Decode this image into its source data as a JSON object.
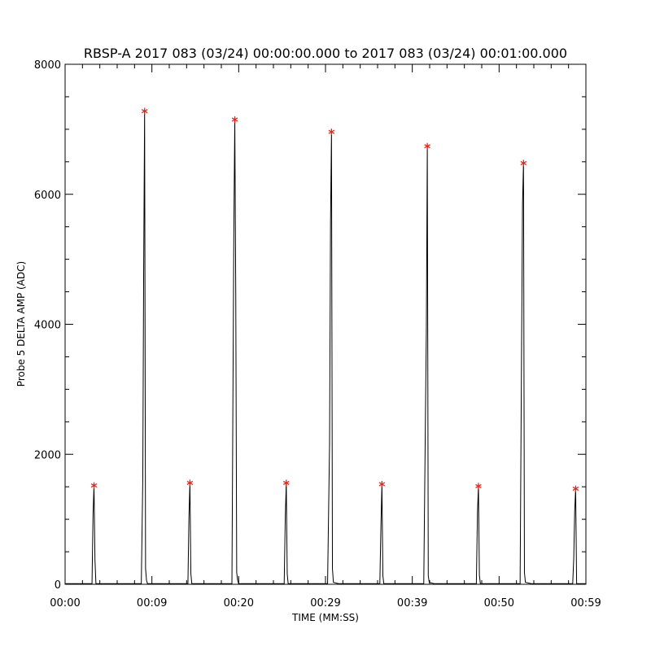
{
  "chart_data": {
    "type": "line",
    "title": "RBSP-A 2017 083 (03/24) 00:00:00.000 to 2017 083 (03/24) 00:01:00.000",
    "xlabel": "TIME (MM:SS)",
    "ylabel": "Probe 5 DELTA AMP (ADC)",
    "xlim": [
      0,
      60
    ],
    "ylim": [
      0,
      8000
    ],
    "x_ticks": [
      {
        "value": 0,
        "label": "00:00"
      },
      {
        "value": 10,
        "label": "00:09"
      },
      {
        "value": 20,
        "label": "00:20"
      },
      {
        "value": 30,
        "label": "00:29"
      },
      {
        "value": 40,
        "label": "00:39"
      },
      {
        "value": 50,
        "label": "00:50"
      },
      {
        "value": 60,
        "label": "00:59"
      }
    ],
    "y_ticks": [
      {
        "value": 0,
        "label": "0"
      },
      {
        "value": 2000,
        "label": "2000"
      },
      {
        "value": 4000,
        "label": "4000"
      },
      {
        "value": 6000,
        "label": "6000"
      },
      {
        "value": 8000,
        "label": "8000"
      }
    ],
    "x_minor_step": 2,
    "y_minor_step": 500,
    "grid": false,
    "line_color": "#000000",
    "marker_color": "#e8251a",
    "marker_symbol": "*",
    "series": [
      {
        "values_x": [
          0,
          3.1,
          3.22,
          3.33,
          3.44,
          3.55,
          4.3,
          8.2,
          8.6,
          8.78,
          8.95,
          9.05,
          9.16,
          9.27,
          9.38,
          9.49,
          9.6,
          10.1,
          12.4,
          12.8,
          14.15,
          14.27,
          14.38,
          14.49,
          14.6,
          15.2,
          17.4,
          17.8,
          19.22,
          19.44,
          19.55,
          19.66,
          19.77,
          19.88,
          19.99,
          20.4,
          23.7,
          24.1,
          25.24,
          25.37,
          25.48,
          25.59,
          25.7,
          26.4,
          28.8,
          29.2,
          30.24,
          30.47,
          30.58,
          30.69,
          30.8,
          30.91,
          31.5,
          34.6,
          35.0,
          36.26,
          36.39,
          36.5,
          36.61,
          36.72,
          37.4,
          39.6,
          40.0,
          41.32,
          41.51,
          41.62,
          41.73,
          41.84,
          41.95,
          42.5,
          45.6,
          46.0,
          47.38,
          47.51,
          47.62,
          47.73,
          47.84,
          48.5,
          50.8,
          51.2,
          52.42,
          52.59,
          52.7,
          52.81,
          52.92,
          53.03,
          53.7,
          56.6,
          57.0,
          58.48,
          58.6,
          58.71,
          58.82,
          58.93,
          60
        ],
        "values_y": [
          10,
          10,
          1080,
          1520,
          380,
          10,
          10,
          10,
          10,
          10,
          1620,
          4760,
          7280,
          240,
          60,
          10,
          10,
          10,
          10,
          10,
          10,
          1040,
          1560,
          160,
          10,
          10,
          10,
          10,
          10,
          5430,
          7150,
          4490,
          180,
          60,
          10,
          10,
          10,
          10,
          10,
          1040,
          1560,
          160,
          10,
          10,
          10,
          10,
          10,
          2180,
          5580,
          6960,
          240,
          30,
          10,
          10,
          10,
          10,
          920,
          1540,
          130,
          10,
          10,
          10,
          10,
          10,
          2520,
          3920,
          6740,
          130,
          30,
          10,
          10,
          10,
          10,
          1110,
          1510,
          140,
          10,
          10,
          10,
          10,
          10,
          3660,
          5860,
          6480,
          180,
          30,
          10,
          10,
          10,
          10,
          400,
          1130,
          1470,
          10,
          10
        ]
      }
    ],
    "peaks": {
      "x": [
        3.33,
        9.16,
        14.38,
        19.55,
        25.48,
        30.69,
        36.5,
        41.73,
        47.62,
        52.81,
        58.82
      ],
      "y": [
        1520,
        7280,
        1560,
        7150,
        1560,
        6960,
        1540,
        6740,
        1510,
        6480,
        1470
      ]
    }
  }
}
